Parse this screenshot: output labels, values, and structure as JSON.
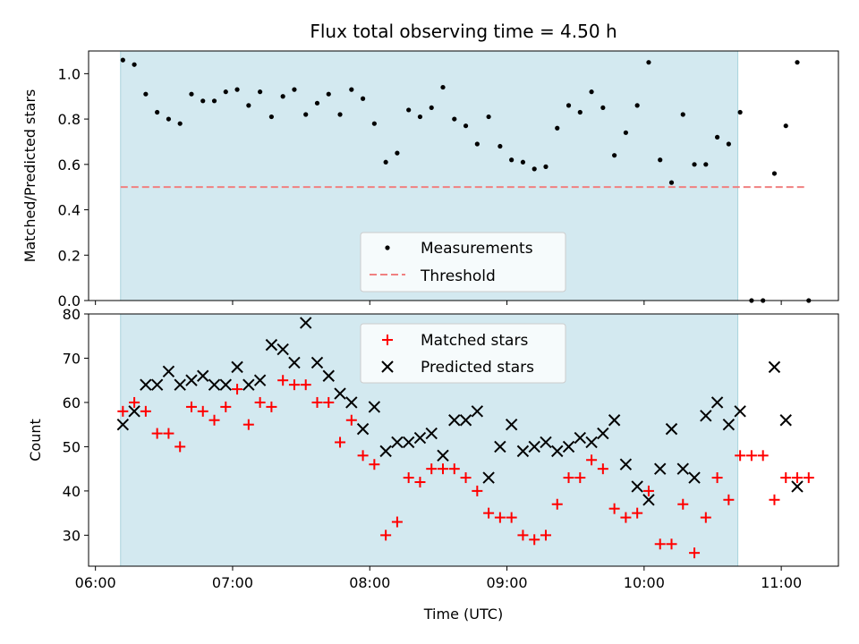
{
  "chart_data": [
    {
      "type": "scatter",
      "title": "Flux total observing time = 4.50 h",
      "xlabel": "",
      "ylabel": "Matched/Predicted stars",
      "xlim": [
        "05:57",
        "11:25"
      ],
      "ylim": [
        0,
        1.1
      ],
      "yticks": [
        "0.0",
        "0.2",
        "0.4",
        "0.6",
        "0.8",
        "1.0"
      ],
      "shaded_region": {
        "x_start": "06:11",
        "x_end": "10:41",
        "color": "#d3e9f0"
      },
      "threshold": {
        "name": "Threshold",
        "y": 0.5,
        "x_start": "06:11",
        "x_end": "11:10",
        "color": "#f08080"
      },
      "legend": {
        "placement": "lower-center",
        "entries": [
          "Measurements",
          "Threshold"
        ]
      },
      "series": [
        {
          "name": "Measurements",
          "color": "#000000",
          "x": [
            "06:12",
            "06:17",
            "06:22",
            "06:27",
            "06:32",
            "06:37",
            "06:42",
            "06:47",
            "06:52",
            "06:57",
            "07:02",
            "07:07",
            "07:12",
            "07:17",
            "07:22",
            "07:27",
            "07:32",
            "07:37",
            "07:42",
            "07:47",
            "07:52",
            "07:57",
            "08:02",
            "08:07",
            "08:12",
            "08:17",
            "08:22",
            "08:27",
            "08:32",
            "08:37",
            "08:42",
            "08:47",
            "08:52",
            "08:57",
            "09:02",
            "09:07",
            "09:12",
            "09:17",
            "09:22",
            "09:27",
            "09:32",
            "09:37",
            "09:42",
            "09:47",
            "09:52",
            "09:57",
            "10:02",
            "10:07",
            "10:12",
            "10:17",
            "10:22",
            "10:27",
            "10:32",
            "10:37",
            "10:42",
            "10:47",
            "10:52",
            "10:57",
            "11:02",
            "11:07",
            "11:12"
          ],
          "y": [
            1.06,
            1.04,
            0.91,
            0.83,
            0.8,
            0.78,
            0.91,
            0.88,
            0.88,
            0.92,
            0.93,
            0.86,
            0.92,
            0.81,
            0.9,
            0.93,
            0.82,
            0.87,
            0.91,
            0.82,
            0.93,
            0.89,
            0.78,
            0.61,
            0.65,
            0.84,
            0.81,
            0.85,
            0.94,
            0.8,
            0.77,
            0.69,
            0.81,
            0.68,
            0.62,
            0.61,
            0.58,
            0.59,
            0.76,
            0.86,
            0.83,
            0.92,
            0.85,
            0.64,
            0.74,
            0.86,
            1.05,
            0.62,
            0.52,
            0.82,
            0.6,
            0.6,
            0.72,
            0.69,
            0.83,
            0.0,
            0.0,
            0.56,
            0.77,
            1.05,
            0.0
          ]
        }
      ]
    },
    {
      "type": "scatter",
      "title": "",
      "xlabel": "Time (UTC)",
      "ylabel": "Count",
      "xlim": [
        "05:57",
        "11:25"
      ],
      "ylim": [
        23,
        80
      ],
      "yticks": [
        "30",
        "40",
        "50",
        "60",
        "70",
        "80"
      ],
      "xticks": [
        "06:00",
        "07:00",
        "08:00",
        "09:00",
        "10:00",
        "11:00"
      ],
      "shaded_region": {
        "x_start": "06:11",
        "x_end": "10:41",
        "color": "#d3e9f0"
      },
      "legend": {
        "placement": "upper-center",
        "entries": [
          "Matched stars",
          "Predicted stars"
        ]
      },
      "series": [
        {
          "name": "Matched stars",
          "marker": "plus",
          "color": "#ff0000",
          "x": [
            "06:12",
            "06:17",
            "06:22",
            "06:27",
            "06:32",
            "06:37",
            "06:42",
            "06:47",
            "06:52",
            "06:57",
            "07:02",
            "07:07",
            "07:12",
            "07:17",
            "07:22",
            "07:27",
            "07:32",
            "07:37",
            "07:42",
            "07:47",
            "07:52",
            "07:57",
            "08:02",
            "08:07",
            "08:12",
            "08:17",
            "08:22",
            "08:27",
            "08:32",
            "08:37",
            "08:42",
            "08:47",
            "08:52",
            "08:57",
            "09:02",
            "09:07",
            "09:12",
            "09:17",
            "09:22",
            "09:27",
            "09:32",
            "09:37",
            "09:42",
            "09:47",
            "09:52",
            "09:57",
            "10:02",
            "10:07",
            "10:12",
            "10:17",
            "10:22",
            "10:27",
            "10:32",
            "10:37",
            "10:42",
            "10:47",
            "10:52",
            "10:57",
            "11:02",
            "11:07",
            "11:12"
          ],
          "y": [
            58,
            60,
            58,
            53,
            53,
            50,
            59,
            58,
            56,
            59,
            63,
            55,
            60,
            59,
            65,
            64,
            64,
            60,
            60,
            51,
            56,
            48,
            46,
            30,
            33,
            43,
            42,
            45,
            45,
            45,
            43,
            40,
            35,
            34,
            34,
            30,
            29,
            30,
            37,
            43,
            43,
            47,
            45,
            36,
            34,
            35,
            40,
            28,
            28,
            37,
            26,
            34,
            43,
            38,
            48,
            48,
            48,
            38,
            43,
            43,
            43
          ]
        },
        {
          "name": "Predicted stars",
          "marker": "x",
          "color": "#000000",
          "x": [
            "06:12",
            "06:17",
            "06:22",
            "06:27",
            "06:32",
            "06:37",
            "06:42",
            "06:47",
            "06:52",
            "06:57",
            "07:02",
            "07:07",
            "07:12",
            "07:17",
            "07:22",
            "07:27",
            "07:32",
            "07:37",
            "07:42",
            "07:47",
            "07:52",
            "07:57",
            "08:02",
            "08:07",
            "08:12",
            "08:17",
            "08:22",
            "08:27",
            "08:32",
            "08:37",
            "08:42",
            "08:47",
            "08:52",
            "08:57",
            "09:02",
            "09:07",
            "09:12",
            "09:17",
            "09:22",
            "09:27",
            "09:32",
            "09:37",
            "09:42",
            "09:47",
            "09:52",
            "09:57",
            "10:02",
            "10:07",
            "10:12",
            "10:17",
            "10:22",
            "10:27",
            "10:32",
            "10:37",
            "10:42",
            "10:57",
            "11:02",
            "11:07"
          ],
          "y": [
            55,
            58,
            64,
            64,
            67,
            64,
            65,
            66,
            64,
            64,
            68,
            64,
            65,
            73,
            72,
            69,
            78,
            69,
            66,
            62,
            60,
            54,
            59,
            49,
            51,
            51,
            52,
            53,
            48,
            56,
            56,
            58,
            43,
            50,
            55,
            49,
            50,
            51,
            49,
            50,
            52,
            51,
            53,
            56,
            46,
            41,
            38,
            45,
            54,
            45,
            43,
            57,
            60,
            55,
            58,
            68,
            56,
            41
          ]
        }
      ]
    }
  ]
}
